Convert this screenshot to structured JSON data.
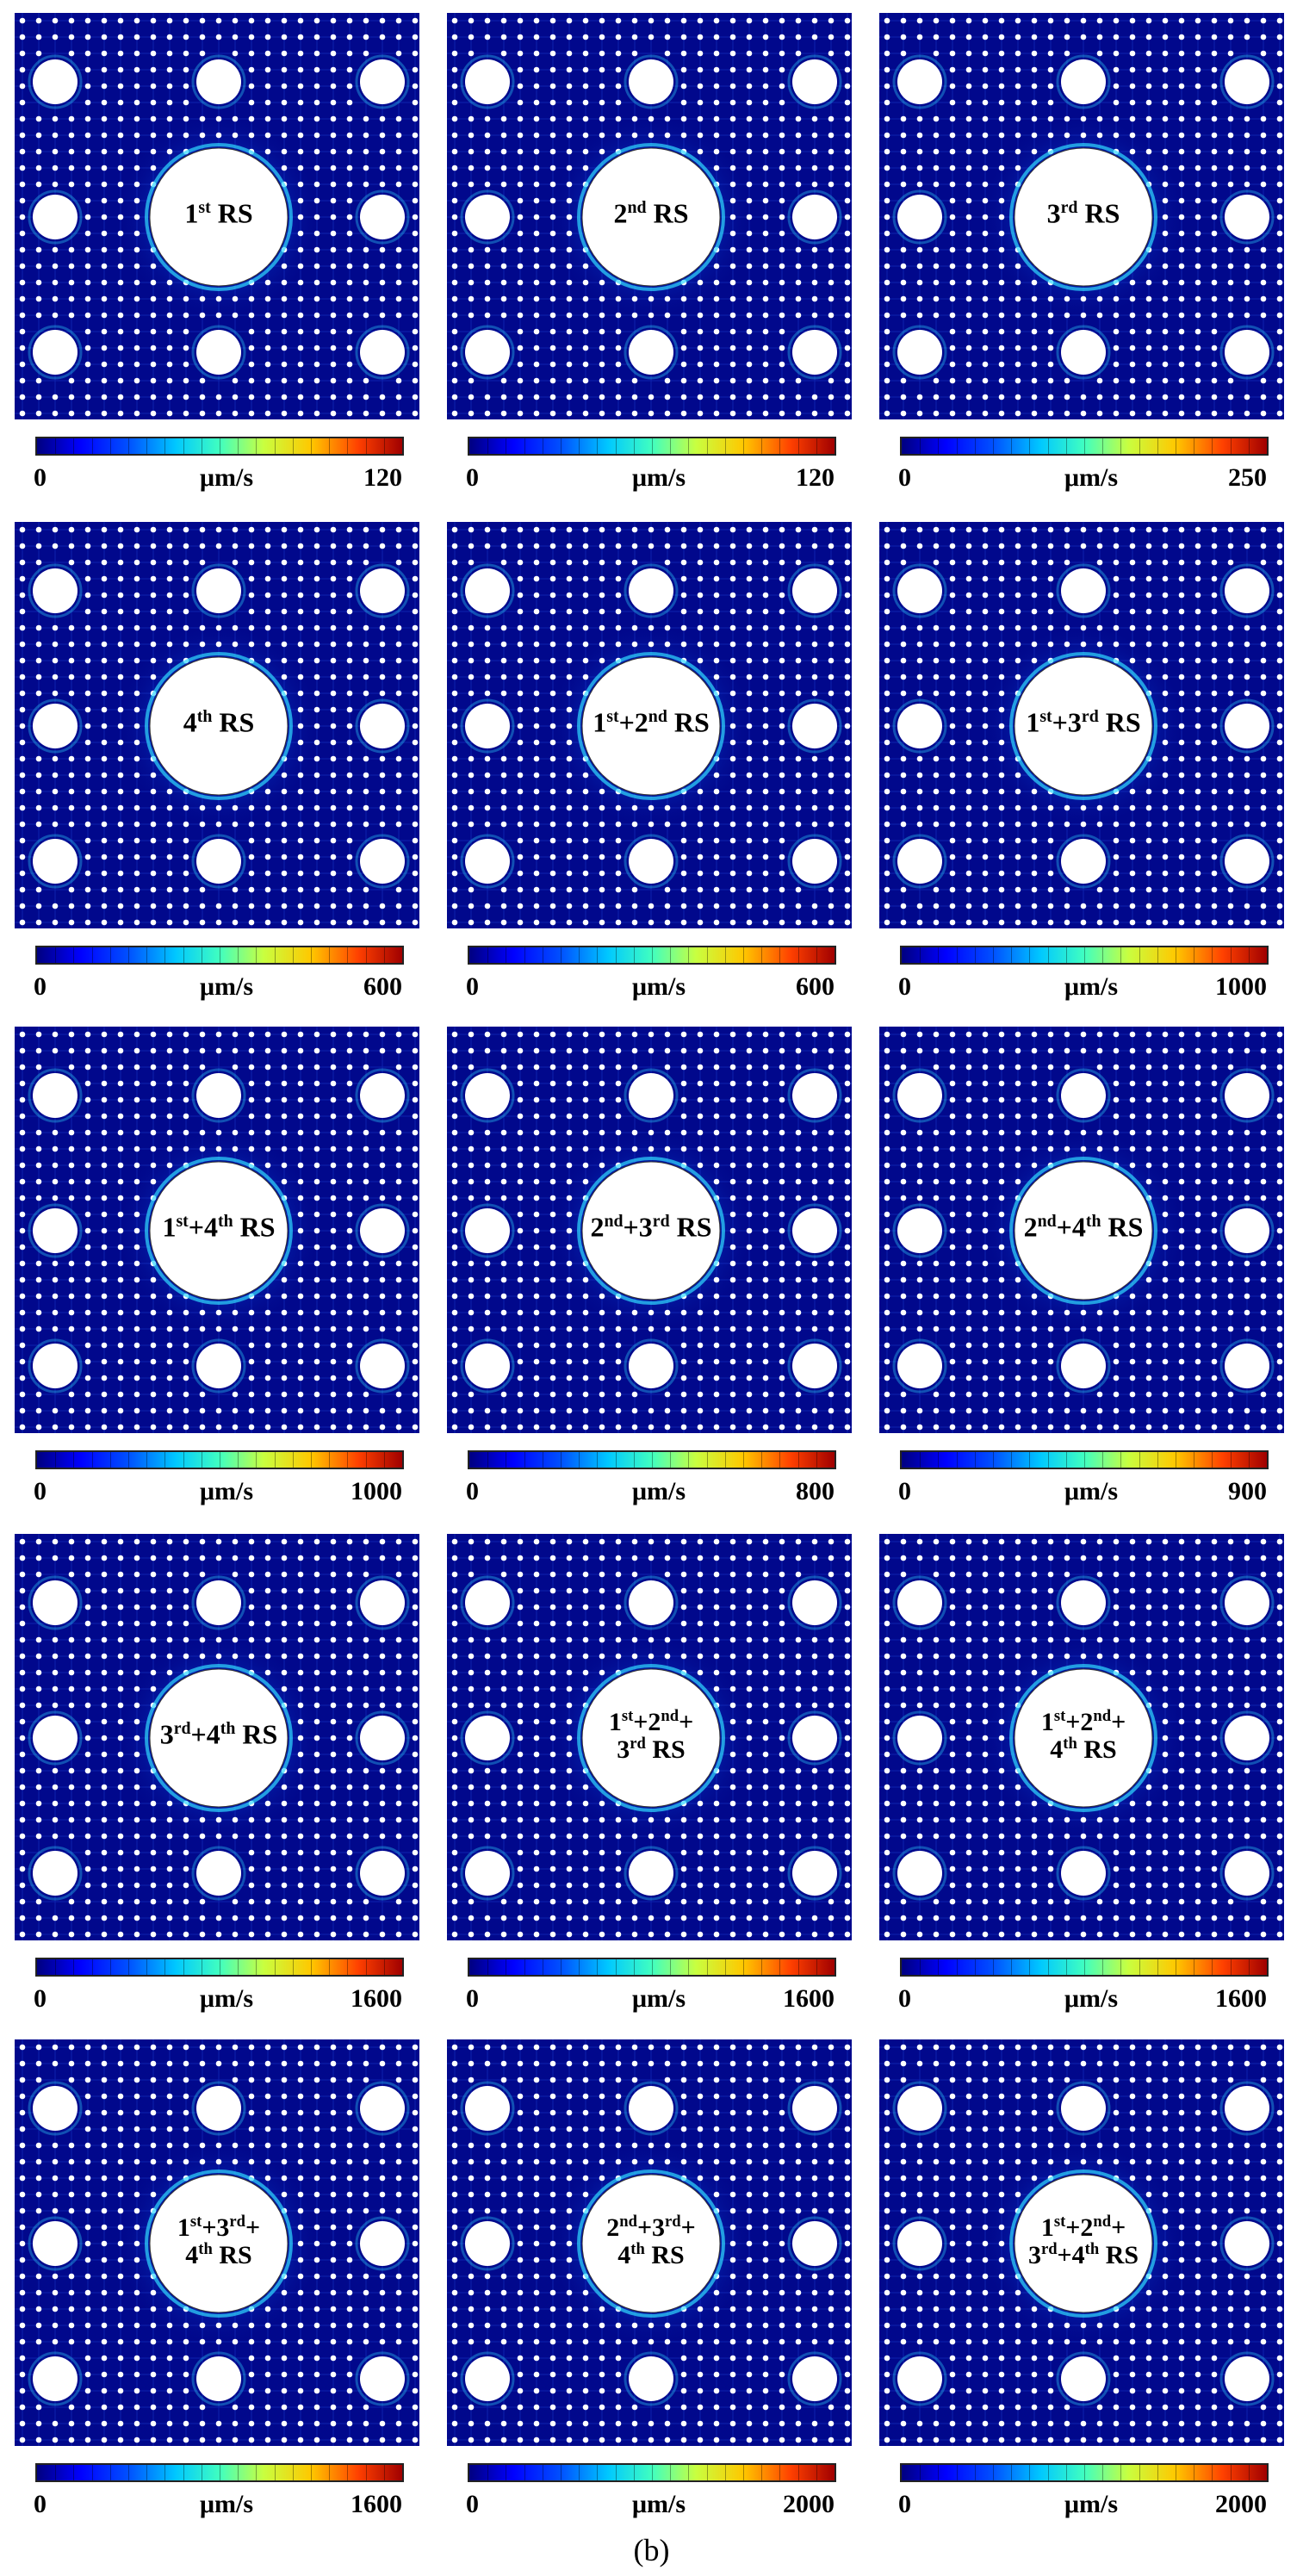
{
  "figure": {
    "caption": "(b)",
    "unit": "μm/s",
    "colors": {
      "background": "#01088c",
      "hole": "#ffffff",
      "glow": "#30d8ff",
      "hot": "#ff3000"
    },
    "panels": [
      {
        "label_html": "1<sup>st</sup> RS",
        "min": "0",
        "max": "120"
      },
      {
        "label_html": "2<sup>nd</sup> RS",
        "min": "0",
        "max": "120"
      },
      {
        "label_html": "3<sup>rd</sup> RS",
        "min": "0",
        "max": "250"
      },
      {
        "label_html": "4<sup>th</sup> RS",
        "min": "0",
        "max": "600"
      },
      {
        "label_html": "1<sup>st</sup>+2<sup>nd</sup> RS",
        "min": "0",
        "max": "600"
      },
      {
        "label_html": "1<sup>st</sup>+3<sup>rd</sup> RS",
        "min": "0",
        "max": "1000"
      },
      {
        "label_html": "1<sup>st</sup>+4<sup>th</sup> RS",
        "min": "0",
        "max": "1000"
      },
      {
        "label_html": "2<sup>nd</sup>+3<sup>rd</sup> RS",
        "min": "0",
        "max": "800"
      },
      {
        "label_html": "2<sup>nd</sup>+4<sup>th</sup> RS",
        "min": "0",
        "max": "900"
      },
      {
        "label_html": "3<sup>rd</sup>+4<sup>th</sup> RS",
        "min": "0",
        "max": "1600"
      },
      {
        "label_html": "1<sup>st</sup>+2<sup>nd</sup>+<br>3<sup>rd</sup> RS",
        "min": "0",
        "max": "1600"
      },
      {
        "label_html": "1<sup>st</sup>+2<sup>nd</sup>+<br>4<sup>th</sup> RS",
        "min": "0",
        "max": "1600"
      },
      {
        "label_html": "1<sup>st</sup>+3<sup>rd</sup>+<br>4<sup>th</sup> RS",
        "min": "0",
        "max": "1600"
      },
      {
        "label_html": "2<sup>nd</sup>+3<sup>rd</sup>+<br>4<sup>th</sup> RS",
        "min": "0",
        "max": "2000"
      },
      {
        "label_html": "1<sup>st</sup>+2<sup>nd</sup>+<br>3<sup>rd</sup>+4<sup>th</sup> RS",
        "min": "0",
        "max": "2000"
      }
    ]
  }
}
